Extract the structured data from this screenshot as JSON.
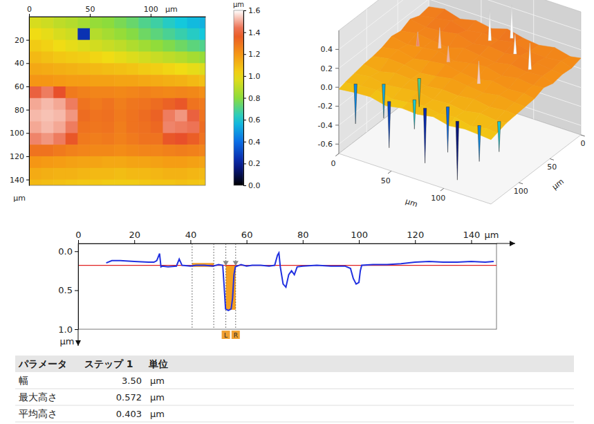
{
  "chart_data": [
    {
      "type": "heatmap",
      "x": [
        5,
        15,
        25,
        35,
        45,
        55,
        65,
        75,
        85,
        95,
        105,
        115,
        125,
        135,
        145
      ],
      "y": [
        5,
        15,
        25,
        35,
        45,
        55,
        65,
        75,
        85,
        95,
        105,
        115,
        125,
        135,
        145
      ],
      "z": [
        [
          0.95,
          0.93,
          0.9,
          0.88,
          0.85,
          0.82,
          0.8,
          0.77,
          0.74,
          0.7,
          0.67,
          0.63,
          0.6,
          0.57,
          0.55
        ],
        [
          1.0,
          0.98,
          0.95,
          0.93,
          0.25,
          0.88,
          0.85,
          0.82,
          0.79,
          0.75,
          0.72,
          0.69,
          0.66,
          0.63,
          0.6
        ],
        [
          1.05,
          1.03,
          1.0,
          0.98,
          0.96,
          0.94,
          0.92,
          0.9,
          0.87,
          0.84,
          0.81,
          0.78,
          0.75,
          0.72,
          0.7
        ],
        [
          1.1,
          1.08,
          1.06,
          1.05,
          1.04,
          1.02,
          1.0,
          0.98,
          0.96,
          0.94,
          0.92,
          0.9,
          0.88,
          0.85,
          0.82
        ],
        [
          1.15,
          1.14,
          1.13,
          1.12,
          1.11,
          1.1,
          1.09,
          1.08,
          1.07,
          1.05,
          1.04,
          1.02,
          1.0,
          0.98,
          0.96
        ],
        [
          1.2,
          1.2,
          1.19,
          1.18,
          1.18,
          1.17,
          1.17,
          1.16,
          1.16,
          1.15,
          1.14,
          1.13,
          1.12,
          1.1,
          1.08
        ],
        [
          1.42,
          1.45,
          1.4,
          1.28,
          1.26,
          1.25,
          1.25,
          1.24,
          1.25,
          1.26,
          1.25,
          1.24,
          1.25,
          1.24,
          1.22
        ],
        [
          1.5,
          1.52,
          1.5,
          1.45,
          1.3,
          1.28,
          1.3,
          1.27,
          1.29,
          1.3,
          1.32,
          1.35,
          1.38,
          1.3,
          1.28
        ],
        [
          1.52,
          1.53,
          1.52,
          1.48,
          1.32,
          1.3,
          1.31,
          1.28,
          1.3,
          1.32,
          1.35,
          1.45,
          1.48,
          1.42,
          1.3
        ],
        [
          1.5,
          1.52,
          1.5,
          1.45,
          1.3,
          1.29,
          1.3,
          1.27,
          1.3,
          1.31,
          1.33,
          1.46,
          1.45,
          1.44,
          1.32
        ],
        [
          1.46,
          1.48,
          1.45,
          1.38,
          1.28,
          1.27,
          1.28,
          1.26,
          1.28,
          1.3,
          1.3,
          1.38,
          1.4,
          1.36,
          1.3
        ],
        [
          1.3,
          1.3,
          1.28,
          1.26,
          1.25,
          1.24,
          1.24,
          1.23,
          1.24,
          1.25,
          1.25,
          1.26,
          1.27,
          1.26,
          1.25
        ],
        [
          1.2,
          1.19,
          1.18,
          1.17,
          1.16,
          1.16,
          1.15,
          1.15,
          1.16,
          1.16,
          1.17,
          1.18,
          1.18,
          1.17,
          1.16
        ],
        [
          1.14,
          1.13,
          1.12,
          1.12,
          1.11,
          1.1,
          1.1,
          1.09,
          1.1,
          1.1,
          1.11,
          1.12,
          1.12,
          1.11,
          1.1
        ],
        [
          1.1,
          1.09,
          1.08,
          1.07,
          1.06,
          1.06,
          1.05,
          1.05,
          1.05,
          1.06,
          1.07,
          1.07,
          1.08,
          1.07,
          1.06
        ]
      ],
      "xlim": [
        0,
        145
      ],
      "ylim": [
        0,
        145
      ],
      "xticks": [
        0,
        50,
        100
      ],
      "yticks": [
        20,
        40,
        60,
        80,
        100,
        120,
        140
      ],
      "x_label": "µm",
      "y_label": "µm",
      "colorbar": {
        "range": [
          0,
          1.6
        ],
        "ticks": [
          {
            "value": 0,
            "label": "0.0"
          },
          0.2,
          0.4,
          0.6,
          0.8,
          {
            "value": 1,
            "label": "1.0"
          },
          1.2,
          1.4,
          1.6
        ],
        "label": "µm"
      }
    },
    {
      "type": "surface3d",
      "x": [
        0,
        15,
        30,
        45,
        60,
        75,
        90,
        105,
        120,
        135,
        145
      ],
      "y": [
        0,
        15,
        30,
        45,
        60,
        75,
        90,
        105,
        120,
        135,
        145
      ],
      "z": [
        [
          0.12,
          0.15,
          0.1,
          0.14,
          0.11,
          0.16,
          0.12,
          0.1,
          0.13,
          0.09,
          0.11
        ],
        [
          0.1,
          0.13,
          0.16,
          0.11,
          0.14,
          0.12,
          0.15,
          0.11,
          0.1,
          0.12,
          0.08
        ],
        [
          0.14,
          0.11,
          0.12,
          0.15,
          0.1,
          0.13,
          0.11,
          0.14,
          0.12,
          0.1,
          0.09
        ],
        [
          0.09,
          0.12,
          0.1,
          0.08,
          0.13,
          0.11,
          0.09,
          0.12,
          0.1,
          0.11,
          0.07
        ],
        [
          0.11,
          0.08,
          0.1,
          0.12,
          0.07,
          0.1,
          0.12,
          0.08,
          0.11,
          0.09,
          0.1
        ],
        [
          0.07,
          0.1,
          0.06,
          0.09,
          0.11,
          0.08,
          0.06,
          0.1,
          0.07,
          0.08,
          0.06
        ],
        [
          0.05,
          0.08,
          0.07,
          0.04,
          0.06,
          0.09,
          0.07,
          0.05,
          0.08,
          0.06,
          0.05
        ],
        [
          0.04,
          0.02,
          0.06,
          0.05,
          0.03,
          0.05,
          0.04,
          0.06,
          0.03,
          0.05,
          0.04
        ],
        [
          0.02,
          0.04,
          0.01,
          0.03,
          0.05,
          0.02,
          0.03,
          0.01,
          0.04,
          0.02,
          0.03
        ],
        [
          0,
          0.02,
          0.03,
          -0.01,
          0.01,
          0.03,
          0,
          0.02,
          -0.02,
          0.01,
          0
        ],
        [
          -0.02,
          0,
          0.01,
          -0.03,
          0,
          -0.01,
          0.02,
          -0.02,
          0,
          -0.01,
          -0.02
        ]
      ],
      "spikes": {
        "x": [
          10,
          28,
          45,
          62,
          78,
          92,
          110,
          125,
          138,
          50,
          70,
          85,
          100,
          40,
          120,
          60,
          25,
          95
        ],
        "y": [
          135,
          120,
          140,
          128,
          138,
          125,
          140,
          130,
          120,
          100,
          20,
          10,
          30,
          50,
          40,
          70,
          60,
          80
        ],
        "z": [
          -0.4,
          -0.35,
          -0.5,
          -0.3,
          -0.55,
          -0.45,
          -0.6,
          -0.4,
          -0.3,
          -0.25,
          0.45,
          0.5,
          0.35,
          0.3,
          0.38,
          0.28,
          0.25,
          0.3
        ]
      },
      "xlim": [
        0,
        145
      ],
      "ylim": [
        0,
        145
      ],
      "zlim": [
        -0.7,
        0.6
      ],
      "xticks": [
        0,
        50,
        100
      ],
      "yticks": [
        0,
        50,
        100
      ],
      "zticks": [
        0.4,
        0.2,
        {
          "value": 0,
          "label": "0.0"
        },
        -0.2,
        -0.4,
        -0.6
      ],
      "x_label": "µm",
      "y_label": "µm"
    },
    {
      "type": "line",
      "x": [
        10,
        12,
        15,
        20,
        25,
        27,
        28,
        29,
        29.5,
        30,
        32,
        35,
        36,
        37,
        40,
        42,
        45,
        48,
        50,
        51.5,
        52,
        52.5,
        53.5,
        54.5,
        55,
        55.5,
        56,
        58,
        60,
        62,
        65,
        68,
        70,
        71,
        71.5,
        72,
        73,
        74,
        75,
        76,
        77,
        78,
        80,
        85,
        90,
        95,
        97,
        98,
        99,
        100,
        100.5,
        101,
        105,
        110,
        115,
        120,
        125,
        130,
        135,
        140,
        145,
        148
      ],
      "values": [
        0.15,
        0.12,
        0.12,
        0.13,
        0.14,
        0.14,
        0.12,
        0.03,
        0.2,
        0.19,
        0.2,
        0.19,
        0.1,
        0.18,
        0.19,
        0.18,
        0.18,
        0.19,
        0.17,
        0.18,
        0.45,
        0.74,
        0.76,
        0.74,
        0.6,
        0.3,
        0.2,
        0.17,
        0.19,
        0.18,
        0.18,
        0.19,
        0.18,
        0.05,
        0.02,
        0.2,
        0.42,
        0.46,
        0.3,
        0.25,
        0.3,
        0.2,
        0.19,
        0.18,
        0.19,
        0.19,
        0.22,
        0.35,
        0.42,
        0.4,
        0.25,
        0.18,
        0.17,
        0.17,
        0.16,
        0.14,
        0.13,
        0.14,
        0.14,
        0.13,
        0.14,
        0.13
      ],
      "color": "#2030e0",
      "xlim": [
        0,
        149
      ],
      "ylim": [
        -0.1,
        1.0
      ],
      "xticks": [
        0,
        20,
        40,
        60,
        80,
        100,
        120,
        140
      ],
      "yticks": [
        {
          "value": 0,
          "label": "0.0"
        },
        0.5,
        {
          "value": 1,
          "label": "1.0"
        }
      ],
      "x_label": "µm",
      "y_label": "µm",
      "reference_line": 0.18,
      "reference_range": {
        "x": [
          40.6,
          48.3
        ],
        "y": [
          0.15,
          0.2
        ]
      },
      "step_range": {
        "x": [
          52.6,
          56.1
        ],
        "y": [
          0.18,
          0.75
        ],
        "labels": [
          "L",
          "R"
        ]
      }
    }
  ],
  "table": {
    "columns": [
      "パラメータ",
      "ステップ 1",
      "単位"
    ],
    "rows": [
      [
        "幅",
        "3.50",
        "µm"
      ],
      [
        "最大高さ",
        "0.572",
        "µm"
      ],
      [
        "平均高さ",
        "0.403",
        "µm"
      ]
    ]
  }
}
